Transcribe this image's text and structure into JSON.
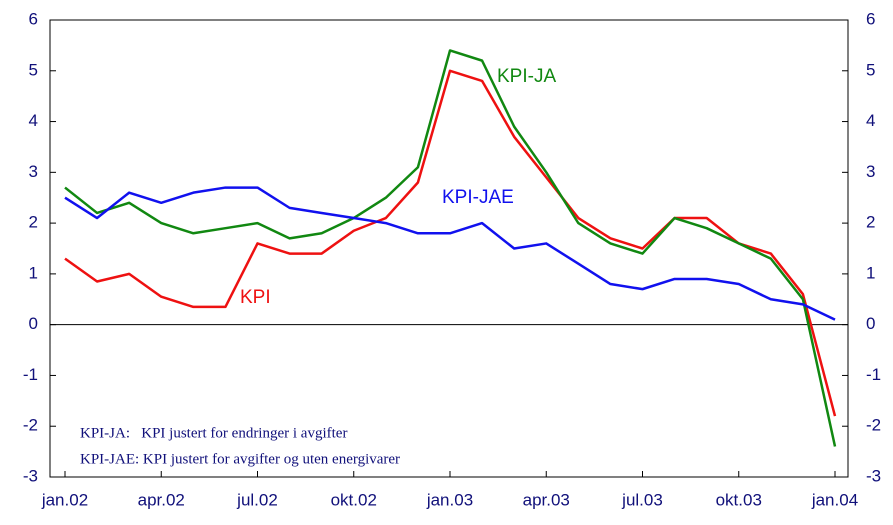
{
  "chart_data": {
    "type": "line",
    "categories": [
      "jan.02",
      null,
      null,
      "apr.02",
      null,
      null,
      "jul.02",
      null,
      null,
      "okt.02",
      null,
      null,
      "jan.03",
      null,
      null,
      "apr.03",
      null,
      null,
      "jul.03",
      null,
      null,
      "okt.03",
      null,
      null,
      "jan.04"
    ],
    "series": [
      {
        "name": "KPI",
        "color": "#ee1111",
        "values": [
          1.3,
          0.85,
          1.0,
          0.55,
          0.35,
          0.35,
          1.6,
          1.4,
          1.4,
          1.85,
          2.1,
          2.8,
          5.0,
          4.8,
          3.7,
          2.9,
          2.1,
          1.7,
          1.5,
          2.1,
          2.1,
          1.6,
          1.4,
          0.6,
          -1.8
        ]
      },
      {
        "name": "KPI-JA",
        "color": "#118811",
        "values": [
          2.7,
          2.2,
          2.4,
          2.0,
          1.8,
          1.9,
          2.0,
          1.7,
          1.8,
          2.1,
          2.5,
          3.1,
          5.4,
          5.2,
          3.9,
          3.0,
          2.0,
          1.6,
          1.4,
          2.1,
          1.9,
          1.6,
          1.3,
          0.5,
          -2.4
        ]
      },
      {
        "name": "KPI-JAE",
        "color": "#1111ee",
        "values": [
          2.5,
          2.1,
          2.6,
          2.4,
          2.6,
          2.7,
          2.7,
          2.3,
          2.2,
          2.1,
          2.0,
          1.8,
          1.8,
          2.0,
          1.5,
          1.6,
          1.2,
          0.8,
          0.7,
          0.9,
          0.9,
          0.8,
          0.5,
          0.4,
          0.1
        ]
      }
    ],
    "notes": [
      "KPI-JA:   KPI justert for endringer i avgifter",
      "KPI-JAE: KPI justert for avgifter og uten energivarer"
    ],
    "ylim": [
      -3,
      6
    ],
    "yticks": [
      -3,
      -2,
      -1,
      0,
      1,
      2,
      3,
      4,
      5,
      6
    ],
    "y2lim": [
      -3,
      6
    ],
    "y2ticks": [
      -3,
      -2,
      -1,
      0,
      1,
      2,
      3,
      4,
      5,
      6
    ],
    "grid": false
  }
}
